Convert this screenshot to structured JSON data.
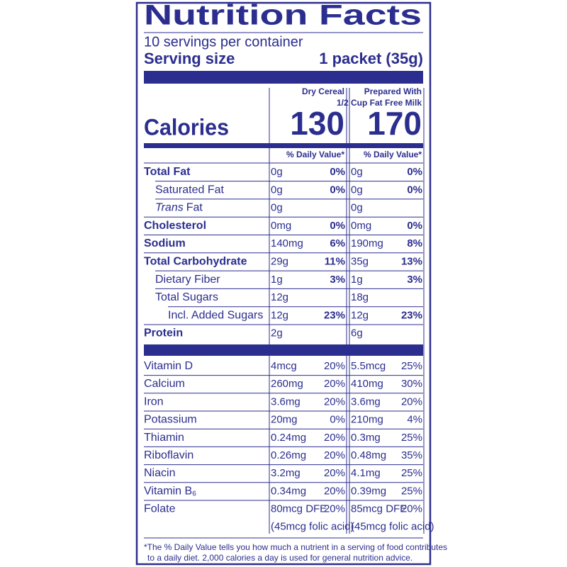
{
  "title": "Nutrition Facts",
  "servings": "10 servings per container",
  "serving_size": {
    "label": "Serving size",
    "value": "1 packet (35g)"
  },
  "calories_label": "Calories",
  "columns": [
    {
      "header": [
        "Dry Cereal"
      ],
      "calories": 130,
      "dv_header": "% Daily Value*"
    },
    {
      "header": [
        "Prepared With",
        "1/2 Cup Fat Free Milk"
      ],
      "calories": 170,
      "dv_header": "% Daily Value*"
    }
  ],
  "nutrients": [
    {
      "name": "Total Fat",
      "cols": [
        {
          "amount": "0g",
          "dv": "0%"
        },
        {
          "amount": "0g",
          "dv": "0%"
        }
      ]
    },
    {
      "name": "Saturated Fat",
      "cols": [
        {
          "amount": "0g",
          "dv": "0%"
        },
        {
          "amount": "0g",
          "dv": "0%"
        }
      ]
    },
    {
      "name_italic": "Trans",
      "name": "Fat",
      "cols": [
        {
          "amount": "0g"
        },
        {
          "amount": "0g"
        }
      ]
    },
    {
      "name": "Cholesterol",
      "cols": [
        {
          "amount": "0mg",
          "dv": "0%"
        },
        {
          "amount": "0mg",
          "dv": "0%"
        }
      ]
    },
    {
      "name": "Sodium",
      "cols": [
        {
          "amount": "140mg",
          "dv": "6%"
        },
        {
          "amount": "190mg",
          "dv": "8%"
        }
      ]
    },
    {
      "name": "Total Carbohydrate",
      "cols": [
        {
          "amount": "29g",
          "dv": "11%"
        },
        {
          "amount": "35g",
          "dv": "13%"
        }
      ]
    },
    {
      "name": "Dietary Fiber",
      "cols": [
        {
          "amount": "1g",
          "dv": "3%"
        },
        {
          "amount": "1g",
          "dv": "3%"
        }
      ]
    },
    {
      "name": "Total Sugars",
      "cols": [
        {
          "amount": "12g"
        },
        {
          "amount": "18g"
        }
      ]
    },
    {
      "name": "Incl. Added Sugars",
      "cols": [
        {
          "amount": "12g",
          "dv": "23%"
        },
        {
          "amount": "12g",
          "dv": "23%"
        }
      ]
    },
    {
      "name": "Protein",
      "cols": [
        {
          "amount": "2g"
        },
        {
          "amount": "6g"
        }
      ]
    }
  ],
  "vitamins": [
    {
      "name": "Vitamin D",
      "cols": [
        {
          "amount": "4mcg",
          "dv": "20%"
        },
        {
          "amount": "5.5mcg",
          "dv": "25%"
        }
      ]
    },
    {
      "name": "Calcium",
      "cols": [
        {
          "amount": "260mg",
          "dv": "20%"
        },
        {
          "amount": "410mg",
          "dv": "30%"
        }
      ]
    },
    {
      "name": "Iron",
      "cols": [
        {
          "amount": "3.6mg",
          "dv": "20%"
        },
        {
          "amount": "3.6mg",
          "dv": "20%"
        }
      ]
    },
    {
      "name": "Potassium",
      "cols": [
        {
          "amount": "20mg",
          "dv": "0%"
        },
        {
          "amount": "210mg",
          "dv": "4%"
        }
      ]
    },
    {
      "name": "Thiamin",
      "cols": [
        {
          "amount": "0.24mg",
          "dv": "20%"
        },
        {
          "amount": "0.3mg",
          "dv": "25%"
        }
      ]
    },
    {
      "name": "Riboflavin",
      "cols": [
        {
          "amount": "0.26mg",
          "dv": "20%"
        },
        {
          "amount": "0.48mg",
          "dv": "35%"
        }
      ]
    },
    {
      "name": "Niacin",
      "cols": [
        {
          "amount": "3.2mg",
          "dv": "20%"
        },
        {
          "amount": "4.1mg",
          "dv": "25%"
        }
      ]
    },
    {
      "name": "Vitamin B",
      "name_sub": "6",
      "cols": [
        {
          "amount": "0.34mg",
          "dv": "20%"
        },
        {
          "amount": "0.39mg",
          "dv": "25%"
        }
      ]
    },
    {
      "name": "Folate",
      "cols": [
        {
          "amount": "80mcg DFE",
          "dv": "20%",
          "extra": "(45mcg folic acid)"
        },
        {
          "amount": "85mcg DFE",
          "dv": "20%",
          "extra": "(45mcg folic acid)"
        }
      ]
    }
  ],
  "footnote": [
    "*The % Daily Value tells you how much a nutrient in a serving of food contributes",
    "to a daily diet. 2,000 calories a day is used for general nutrition advice."
  ]
}
